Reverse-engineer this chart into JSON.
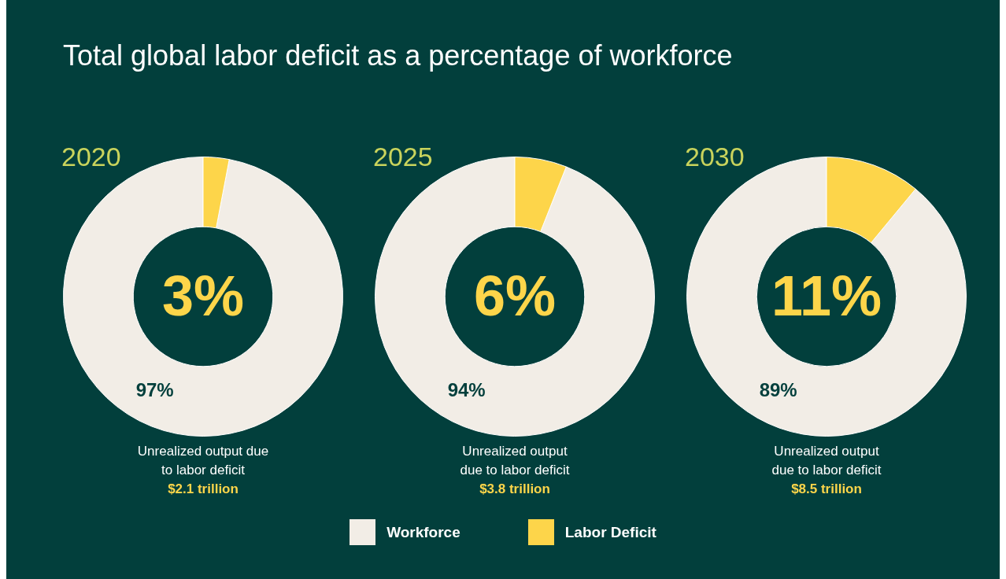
{
  "chart_data": [
    {
      "type": "donut",
      "title": "Total global labor deficit as a percentage of workforce",
      "subtitle": "2020",
      "categories": [
        "Workforce",
        "Labor Deficit"
      ],
      "values": [
        97,
        3
      ],
      "colors": [
        "#f2ede6",
        "#fdd54a"
      ],
      "value_labels": [
        "97%",
        "3%"
      ],
      "annotations": [
        "Unrealized output due to labor deficit",
        "$2.1 trillion"
      ],
      "legend": "bottom"
    },
    {
      "type": "donut",
      "subtitle": "2025",
      "categories": [
        null,
        null
      ],
      "values": [
        94,
        6
      ],
      "colors": [
        "#f2ede6",
        "#fdd54a"
      ],
      "value_labels": [
        "94%",
        "6%"
      ],
      "annotations": [
        "Unrealized output due to labor deficit",
        "$3.8 trillion"
      ]
    },
    {
      "type": "donut",
      "subtitle": "2030",
      "categories": [
        null,
        null
      ],
      "values": [
        89,
        11
      ],
      "colors": [
        "#f2ede6",
        "#fdd54a"
      ],
      "value_labels": [
        "89%",
        "11%"
      ],
      "annotations": [
        "Unrealized output due to labor deficit",
        "$8.5 trillion"
      ]
    }
  ]
}
